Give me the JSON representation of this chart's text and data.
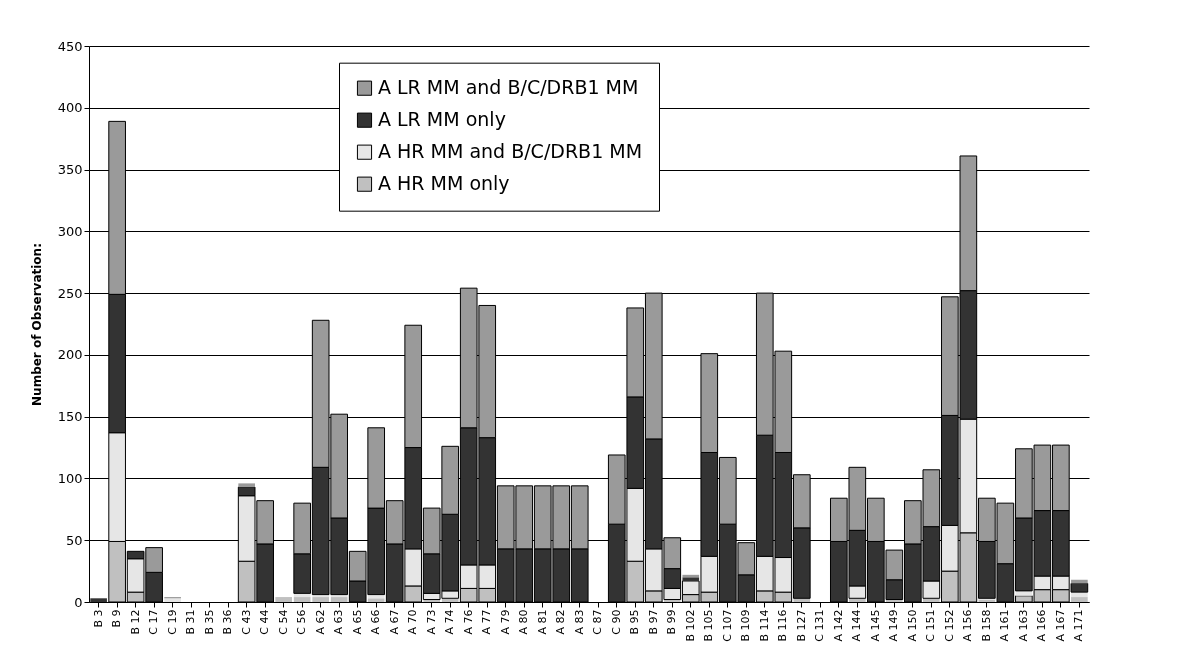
{
  "chart_data": {
    "type": "bar",
    "stacked": true,
    "ylabel": "Number of Observation:",
    "ylim": [
      0,
      450
    ],
    "yticks": [
      0,
      50,
      100,
      150,
      200,
      250,
      300,
      350,
      400,
      450
    ],
    "grid": "y",
    "legend": "top",
    "categories": [
      "B 3",
      "B 9",
      "B 12",
      "C 17",
      "C 19",
      "B 31",
      "B 35",
      "B 36",
      "C 43",
      "C 44",
      "C 54",
      "C 56",
      "A 62",
      "A 63",
      "A 65",
      "A 66",
      "A 67",
      "A 70",
      "A 73",
      "A 74",
      "A 76",
      "A 77",
      "A 79",
      "A 80",
      "A 81",
      "A 82",
      "A 83",
      "C 87",
      "C 90",
      "B 95",
      "B 97",
      "B 99",
      "B 102",
      "B 105",
      "C 107",
      "B 109",
      "B 114",
      "B 116",
      "B 127",
      "C 131",
      "A 142",
      "A 144",
      "A 145",
      "A 149",
      "A 150",
      "C 151",
      "C 152",
      "A 156",
      "B 158",
      "A 161",
      "A 163",
      "A 166",
      "A 167",
      "A 171"
    ],
    "series": [
      {
        "name": "A HR MM only",
        "color": "#c0c0c0",
        "values": [
          0,
          49,
          8,
          0,
          null,
          0,
          0,
          0,
          33,
          0,
          4,
          4,
          4,
          4,
          0,
          3,
          0,
          13,
          2,
          3,
          11,
          11,
          0,
          0,
          0,
          0,
          0,
          0,
          0,
          33,
          9,
          2,
          6,
          8,
          0,
          null,
          9,
          8,
          3,
          0,
          0,
          3,
          0,
          2,
          0,
          3,
          25,
          56,
          2,
          0,
          5,
          10,
          10,
          4
        ]
      },
      {
        "name": "A HR MM and B/C/DRB1 MM",
        "color": "#e6e6e6",
        "values": [
          0,
          88,
          27,
          0,
          3,
          0,
          0,
          0,
          53,
          0,
          0,
          3,
          2,
          2,
          0,
          3,
          0,
          30,
          5,
          6,
          19,
          19,
          0,
          0,
          0,
          0,
          0,
          0,
          0,
          59,
          34,
          9,
          11,
          29,
          0,
          0,
          28,
          28,
          null,
          0,
          0,
          10,
          0,
          0,
          0,
          14,
          37,
          92,
          1,
          0,
          4,
          11,
          11,
          4
        ]
      },
      {
        "name": "A LR MM only",
        "color": "#333333",
        "values": [
          3,
          112,
          6,
          24,
          0,
          0,
          0,
          0,
          7,
          47,
          0,
          32,
          103,
          62,
          17,
          70,
          47,
          82,
          32,
          62,
          111,
          103,
          43,
          43,
          43,
          43,
          43,
          0,
          63,
          74,
          89,
          16,
          3,
          84,
          63,
          22,
          98,
          85,
          57,
          0,
          49,
          45,
          49,
          16,
          47,
          44,
          89,
          104,
          46,
          31,
          59,
          53,
          53,
          7
        ]
      },
      {
        "name": "A LR MM and B/C/DRB1 MM",
        "color": "#9a9a9a",
        "values": [
          0,
          140,
          0,
          20,
          1,
          0,
          0,
          0,
          3,
          35,
          0,
          41,
          119,
          84,
          24,
          65,
          35,
          99,
          37,
          55,
          113,
          107,
          51,
          51,
          51,
          51,
          51,
          0,
          56,
          72,
          118,
          25,
          2,
          80,
          54,
          26,
          115,
          82,
          43,
          0,
          35,
          51,
          35,
          24,
          35,
          46,
          96,
          109,
          35,
          49,
          56,
          53,
          53,
          3
        ]
      }
    ]
  }
}
